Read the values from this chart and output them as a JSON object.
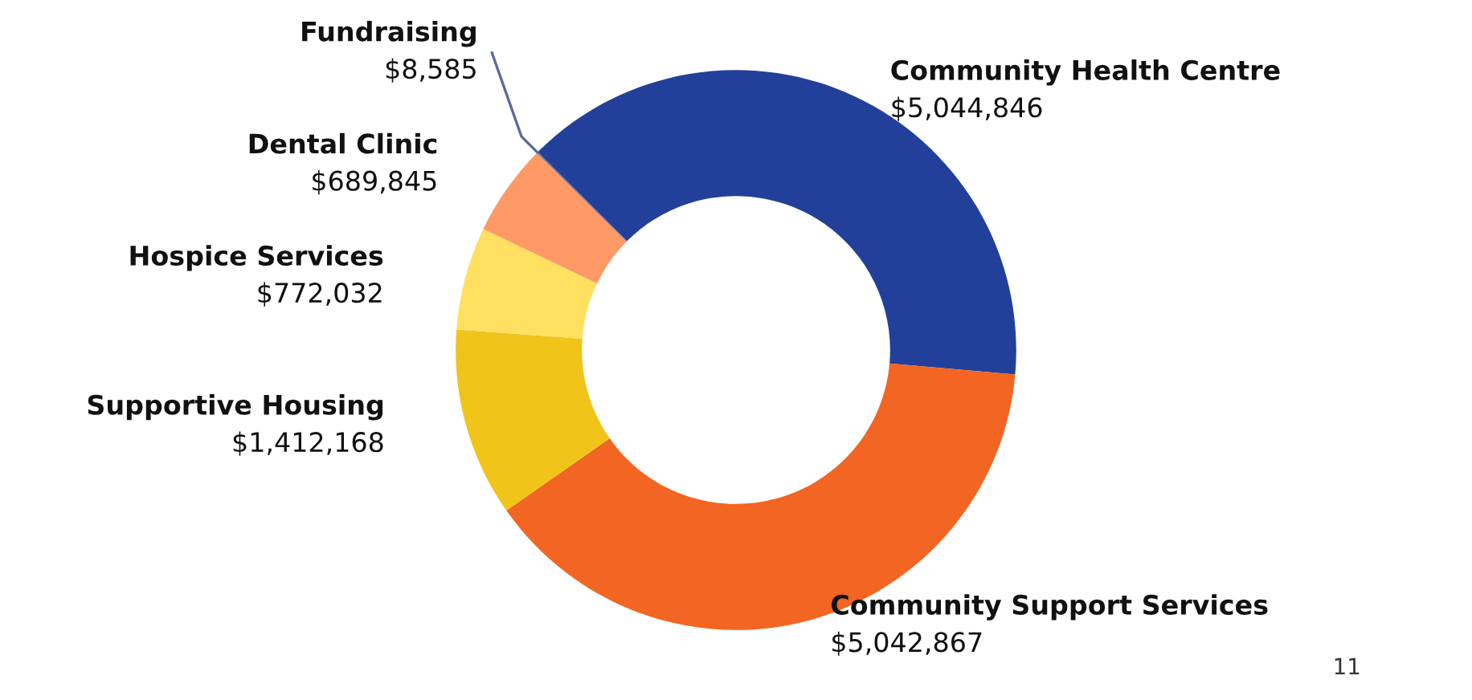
{
  "chart_data": {
    "type": "donut",
    "categories": [
      "Community Health Centre",
      "Community Support Services",
      "Supportive Housing",
      "Hospice Services",
      "Dental Clinic",
      "Fundraising"
    ],
    "values": [
      5044846,
      5042867,
      1412168,
      772032,
      689845,
      8585
    ],
    "colors": [
      "#22409a",
      "#f26522",
      "#f0c419",
      "#ffe060",
      "#ff9966",
      "#5a6a9a"
    ],
    "value_labels": [
      "$5,044,846",
      "$5,042,867",
      "$1,412,168",
      "$772,032",
      "$689,845",
      "$8,585"
    ],
    "annotations": [
      "11"
    ]
  }
}
